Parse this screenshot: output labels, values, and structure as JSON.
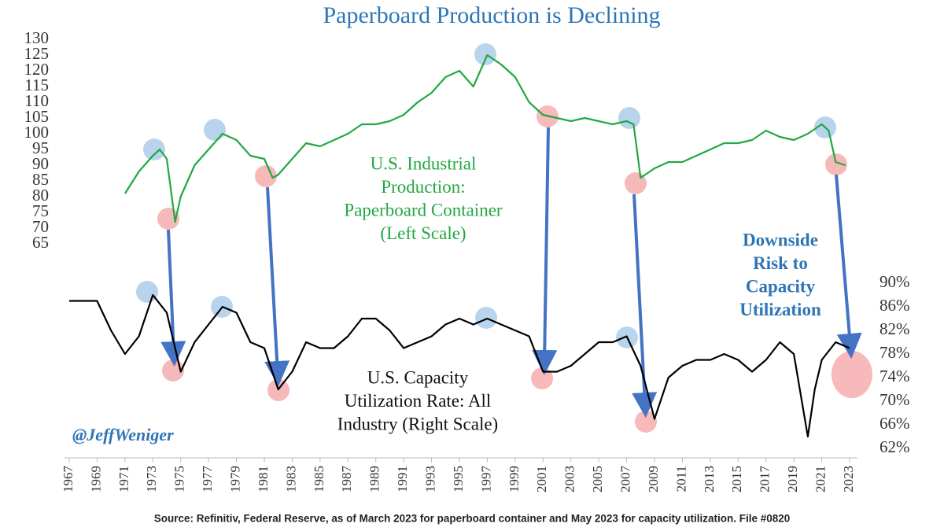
{
  "chart_data": {
    "type": "line",
    "title": "Paperboard Production is Declining",
    "source": "Source: Refinitiv, Federal Reserve, as of March 2023 for paperboard container and May 2023 for capacity utilization. File #0820",
    "credit": "@JeffWeniger",
    "annotations": [
      {
        "lines": [
          "U.S. Industrial",
          "Production:",
          "Paperboard Container",
          "(Left Scale)"
        ],
        "color": "#22a843"
      },
      {
        "lines": [
          "Downside",
          "Risk to",
          "Capacity",
          "Utilization"
        ],
        "color": "#2e75b6"
      },
      {
        "lines": [
          "U.S. Capacity",
          "Utilization Rate: All",
          "Industry (Right Scale)"
        ],
        "color": "#111111"
      }
    ],
    "xlim": [
      1967,
      2023
    ],
    "xticks": [
      1967,
      1969,
      1971,
      1973,
      1975,
      1977,
      1979,
      1981,
      1983,
      1985,
      1987,
      1989,
      1991,
      1993,
      1995,
      1997,
      1999,
      2001,
      2003,
      2005,
      2007,
      2009,
      2011,
      2013,
      2015,
      2017,
      2019,
      2021,
      2023
    ],
    "ylim": [
      65,
      130
    ],
    "yticks": [
      65,
      70,
      75,
      80,
      85,
      90,
      95,
      100,
      105,
      110,
      115,
      120,
      125,
      130
    ],
    "y2lim": [
      62,
      90
    ],
    "y2ticks": [
      {
        "value": 62,
        "label": "62%"
      },
      {
        "value": 66,
        "label": "66%"
      },
      {
        "value": 70,
        "label": "70%"
      },
      {
        "value": 74,
        "label": "74%"
      },
      {
        "value": 78,
        "label": "78%"
      },
      {
        "value": 82,
        "label": "82%"
      },
      {
        "value": 86,
        "label": "86%"
      },
      {
        "value": 90,
        "label": "90%"
      }
    ],
    "series": [
      {
        "name": "U.S. Industrial Production: Paperboard Container",
        "color": "#22a843",
        "axis": "y",
        "x": [
          1971,
          1972,
          1973,
          1973.5,
          1974,
          1974.6,
          1975,
          1976,
          1977,
          1978,
          1979,
          1980,
          1981,
          1981.6,
          1982,
          1983,
          1984,
          1985,
          1986,
          1987,
          1988,
          1989,
          1990,
          1991,
          1992,
          1993,
          1994,
          1995,
          1996,
          1997,
          1998,
          1999,
          2000,
          2001,
          2002,
          2003,
          2004,
          2005,
          2006,
          2007,
          2007.5,
          2008,
          2009,
          2010,
          2011,
          2012,
          2013,
          2014,
          2015,
          2016,
          2017,
          2018,
          2019,
          2020,
          2021,
          2021.5,
          2022,
          2022.7
        ],
        "values": [
          81,
          88,
          93,
          95,
          92,
          72,
          80,
          90,
          95,
          100,
          98,
          93,
          92,
          86,
          87,
          92,
          97,
          96,
          98,
          100,
          103,
          103,
          104,
          106,
          110,
          113,
          118,
          120,
          115,
          125,
          122,
          118,
          110,
          106,
          105,
          104,
          105,
          104,
          103,
          104,
          103,
          86,
          89,
          91,
          91,
          93,
          95,
          97,
          97,
          98,
          101,
          99,
          98,
          100,
          103,
          101,
          91,
          90
        ]
      },
      {
        "name": "U.S. Capacity Utilization Rate: All Industry",
        "color": "#000000",
        "axis": "y2",
        "x": [
          1967,
          1968,
          1969,
          1970,
          1971,
          1972,
          1973,
          1974,
          1975,
          1976,
          1977,
          1978,
          1979,
          1980,
          1981,
          1982,
          1983,
          1984,
          1985,
          1986,
          1987,
          1988,
          1989,
          1990,
          1991,
          1992,
          1993,
          1994,
          1995,
          1996,
          1997,
          1998,
          1999,
          2000,
          2001,
          2002,
          2003,
          2004,
          2005,
          2006,
          2007,
          2008,
          2009,
          2010,
          2011,
          2012,
          2013,
          2014,
          2015,
          2016,
          2017,
          2018,
          2019,
          2020,
          2020.5,
          2021,
          2022,
          2023
        ],
        "values": [
          87,
          87,
          87,
          82,
          78,
          81,
          88,
          85,
          75,
          80,
          83,
          86,
          85,
          80,
          79,
          72,
          75,
          80,
          79,
          79,
          81,
          84,
          84,
          82,
          79,
          80,
          81,
          83,
          84,
          83,
          84,
          83,
          82,
          81,
          75,
          75,
          76,
          78,
          80,
          80,
          81,
          76,
          67,
          74,
          76,
          77,
          77,
          78,
          77,
          75,
          77,
          80,
          78,
          64,
          72,
          77,
          80,
          79
        ]
      }
    ]
  }
}
